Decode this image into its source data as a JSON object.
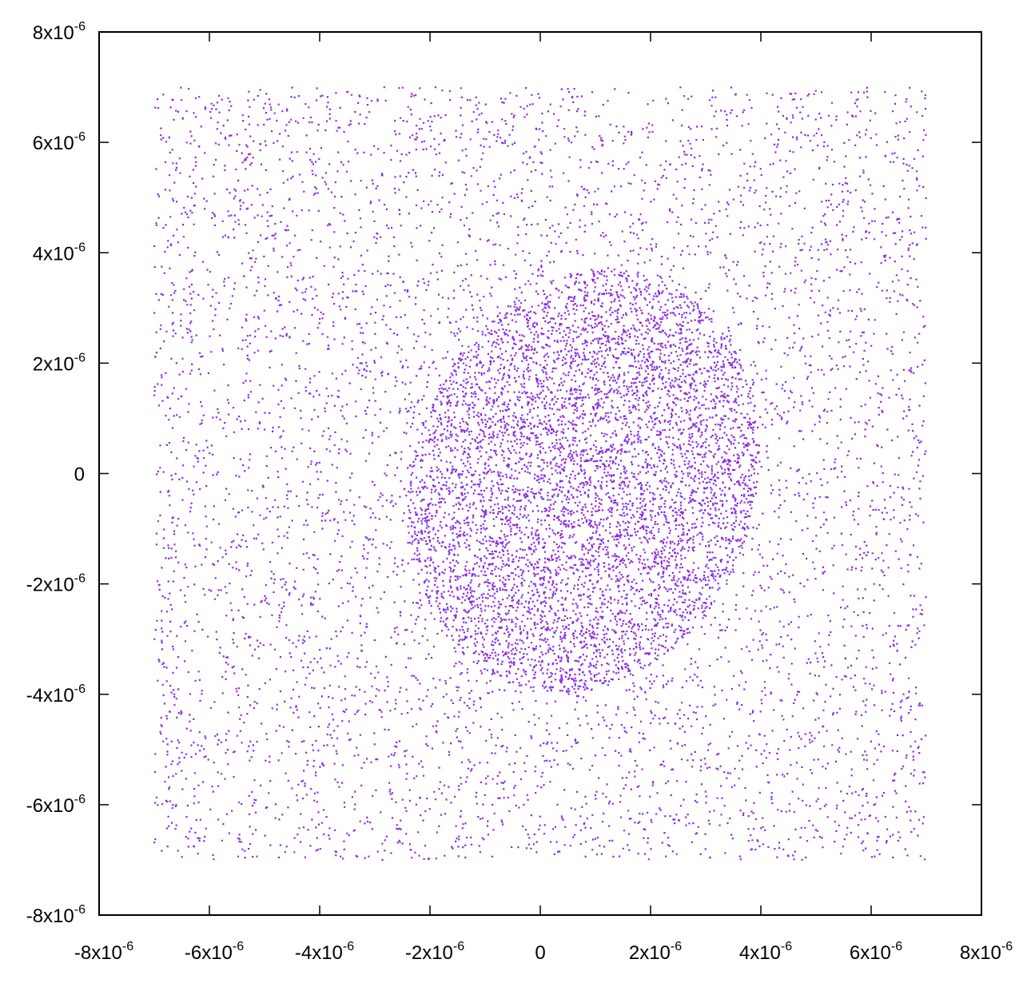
{
  "chart_data": {
    "type": "scatter",
    "title": "",
    "xlabel": "",
    "ylabel": "",
    "xlim": [
      -8e-06,
      8e-06
    ],
    "ylim": [
      -8e-06,
      8e-06
    ],
    "grid": false,
    "legend": "none",
    "marker_color": "#8a2be2",
    "x_ticks": [
      {
        "value": -8e-06,
        "mant": "-8x10",
        "exp": "-6"
      },
      {
        "value": -6e-06,
        "mant": "-6x10",
        "exp": "-6"
      },
      {
        "value": -4e-06,
        "mant": "-4x10",
        "exp": "-6"
      },
      {
        "value": -2e-06,
        "mant": "-2x10",
        "exp": "-6"
      },
      {
        "value": 0,
        "mant": "0",
        "exp": ""
      },
      {
        "value": 2e-06,
        "mant": "2x10",
        "exp": "-6"
      },
      {
        "value": 4e-06,
        "mant": "4x10",
        "exp": "-6"
      },
      {
        "value": 6e-06,
        "mant": "6x10",
        "exp": "-6"
      },
      {
        "value": 8e-06,
        "mant": "8x10",
        "exp": "-6"
      }
    ],
    "y_ticks": [
      {
        "value": 8e-06,
        "mant": "8x10",
        "exp": "-6"
      },
      {
        "value": 6e-06,
        "mant": "6x10",
        "exp": "-6"
      },
      {
        "value": 4e-06,
        "mant": "4x10",
        "exp": "-6"
      },
      {
        "value": 2e-06,
        "mant": "2x10",
        "exp": "-6"
      },
      {
        "value": 0,
        "mant": "0",
        "exp": ""
      },
      {
        "value": -2e-06,
        "mant": "-2x10",
        "exp": "-6"
      },
      {
        "value": -4e-06,
        "mant": "-4x10",
        "exp": "-6"
      },
      {
        "value": -6e-06,
        "mant": "-6x10",
        "exp": "-6"
      },
      {
        "value": -8e-06,
        "mant": "-8x10",
        "exp": "-6"
      }
    ],
    "series": [
      {
        "region": "background",
        "distribution": "uniform",
        "x_range": [
          -7e-06,
          7e-06
        ],
        "y_range": [
          -7e-06,
          7e-06
        ],
        "points": 14000
      },
      {
        "region": "dense-blob",
        "distribution": "uniform-ellipse",
        "center": [
          8e-07,
          -1.5e-07
        ],
        "semi_axes": [
          3.1e-06,
          3.9e-06
        ],
        "rotation_deg": -18,
        "points": 11000
      }
    ]
  }
}
